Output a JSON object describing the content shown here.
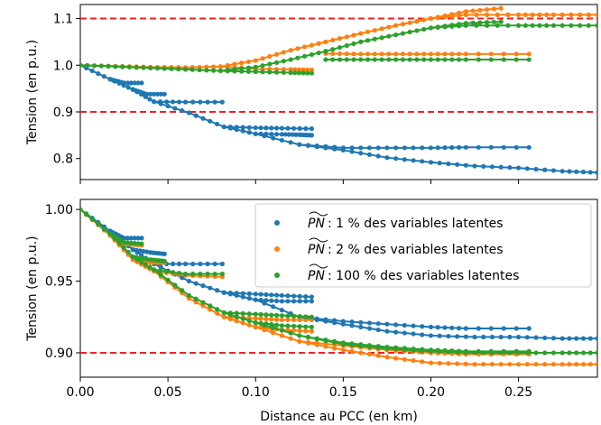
{
  "chart_data": [
    {
      "type": "scatter",
      "panel": "top",
      "xlabel": "",
      "ylabel": "Tension (en p.u.)",
      "xlim": [
        0.0,
        0.295
      ],
      "ylim": [
        0.755,
        1.13
      ],
      "xticks": [
        "0.00",
        "0.05",
        "0.10",
        "0.15",
        "0.20",
        "0.25"
      ],
      "xtick_values": [
        0.0,
        0.05,
        0.1,
        0.15,
        0.2,
        0.25
      ],
      "xticklabels_visible": false,
      "yticks": [
        "0.8",
        "0.9",
        "1.0",
        "1.1"
      ],
      "ytick_values": [
        0.8,
        0.9,
        1.0,
        1.1
      ],
      "hlines": [
        {
          "y": 1.1,
          "color": "#ee2222",
          "style": "dashed"
        },
        {
          "y": 0.9,
          "color": "#ee2222",
          "style": "dashed"
        }
      ],
      "series": [
        {
          "color": "#1f77b4",
          "branches": [
            [
              [
                0.0,
                1.0
              ],
              [
                0.017,
                0.97
              ],
              [
                0.025,
                0.962
              ],
              [
                0.035,
                0.962
              ]
            ],
            [
              [
                0.017,
                0.97
              ],
              [
                0.03,
                0.948
              ],
              [
                0.038,
                0.938
              ],
              [
                0.048,
                0.938
              ]
            ],
            [
              [
                0.03,
                0.948
              ],
              [
                0.042,
                0.922
              ],
              [
                0.06,
                0.921
              ],
              [
                0.081,
                0.921
              ]
            ],
            [
              [
                0.042,
                0.922
              ],
              [
                0.062,
                0.898
              ],
              [
                0.082,
                0.868
              ],
              [
                0.1,
                0.866
              ],
              [
                0.115,
                0.865
              ],
              [
                0.132,
                0.864
              ]
            ],
            [
              [
                0.082,
                0.868
              ],
              [
                0.1,
                0.853
              ],
              [
                0.115,
                0.852
              ],
              [
                0.125,
                0.851
              ],
              [
                0.132,
                0.85
              ]
            ],
            [
              [
                0.1,
                0.853
              ],
              [
                0.125,
                0.83
              ],
              [
                0.15,
                0.823
              ],
              [
                0.175,
                0.823
              ],
              [
                0.2,
                0.823
              ],
              [
                0.22,
                0.824
              ],
              [
                0.256,
                0.824
              ]
            ],
            [
              [
                0.125,
                0.83
              ],
              [
                0.15,
                0.818
              ],
              [
                0.175,
                0.802
              ],
              [
                0.2,
                0.792
              ],
              [
                0.225,
                0.784
              ],
              [
                0.25,
                0.78
              ],
              [
                0.275,
                0.773
              ],
              [
                0.295,
                0.77
              ]
            ]
          ]
        },
        {
          "color": "#ff7f0e",
          "branches": [
            [
              [
                0.0,
                1.0
              ],
              [
                0.02,
                0.998
              ],
              [
                0.04,
                0.996
              ],
              [
                0.06,
                0.995
              ],
              [
                0.08,
                0.997
              ]
            ],
            [
              [
                0.08,
                0.997
              ],
              [
                0.1,
                0.992
              ],
              [
                0.12,
                0.991
              ],
              [
                0.132,
                0.99
              ]
            ],
            [
              [
                0.08,
                0.997
              ],
              [
                0.1,
                1.01
              ],
              [
                0.12,
                1.032
              ],
              [
                0.14,
                1.05
              ],
              [
                0.16,
                1.068
              ],
              [
                0.18,
                1.085
              ],
              [
                0.2,
                1.1
              ],
              [
                0.22,
                1.115
              ],
              [
                0.24,
                1.122
              ]
            ],
            [
              [
                0.14,
                1.025
              ],
              [
                0.16,
                1.024
              ],
              [
                0.18,
                1.024
              ],
              [
                0.2,
                1.024
              ],
              [
                0.22,
                1.024
              ],
              [
                0.256,
                1.024
              ]
            ],
            [
              [
                0.2,
                1.1
              ],
              [
                0.22,
                1.108
              ],
              [
                0.25,
                1.108
              ],
              [
                0.27,
                1.108
              ],
              [
                0.295,
                1.108
              ]
            ]
          ]
        },
        {
          "color": "#2ca02c",
          "branches": [
            [
              [
                0.0,
                1.0
              ],
              [
                0.02,
                0.997
              ],
              [
                0.04,
                0.994
              ],
              [
                0.06,
                0.991
              ],
              [
                0.08,
                0.988
              ]
            ],
            [
              [
                0.08,
                0.988
              ],
              [
                0.1,
                0.986
              ],
              [
                0.12,
                0.984
              ],
              [
                0.132,
                0.983
              ]
            ],
            [
              [
                0.08,
                0.988
              ],
              [
                0.1,
                0.996
              ],
              [
                0.12,
                1.012
              ],
              [
                0.14,
                1.03
              ],
              [
                0.16,
                1.05
              ],
              [
                0.18,
                1.065
              ],
              [
                0.2,
                1.08
              ],
              [
                0.22,
                1.09
              ],
              [
                0.24,
                1.093
              ]
            ],
            [
              [
                0.14,
                1.012
              ],
              [
                0.16,
                1.012
              ],
              [
                0.18,
                1.012
              ],
              [
                0.2,
                1.012
              ],
              [
                0.22,
                1.012
              ],
              [
                0.256,
                1.012
              ]
            ],
            [
              [
                0.2,
                1.08
              ],
              [
                0.22,
                1.085
              ],
              [
                0.25,
                1.085
              ],
              [
                0.27,
                1.085
              ],
              [
                0.295,
                1.085
              ]
            ]
          ]
        }
      ]
    },
    {
      "type": "scatter",
      "panel": "bottom",
      "xlabel": "Distance au PCC (en km)",
      "ylabel": "Tension (en p.u.)",
      "xlim": [
        0.0,
        0.295
      ],
      "ylim": [
        0.883,
        1.007
      ],
      "xticks": [
        "0.00",
        "0.05",
        "0.10",
        "0.15",
        "0.20",
        "0.25"
      ],
      "xtick_values": [
        0.0,
        0.05,
        0.1,
        0.15,
        0.2,
        0.25
      ],
      "xticklabels_visible": true,
      "yticks": [
        "0.90",
        "0.95",
        "1.00"
      ],
      "ytick_values": [
        0.9,
        0.95,
        1.0
      ],
      "hlines": [
        {
          "y": 0.9,
          "color": "#ee2222",
          "style": "dashed"
        }
      ],
      "legend": {
        "placement": "top-right",
        "entries": [
          {
            "prefix": "PN",
            "text": " : 1 % des variables latentes",
            "color": "#1f77b4"
          },
          {
            "prefix": "PN",
            "text": " : 2 % des variables latentes",
            "color": "#ff7f0e"
          },
          {
            "prefix": "PN",
            "text": " : 100 % des variables latentes",
            "color": "#2ca02c"
          }
        ]
      },
      "series": [
        {
          "color": "#1f77b4",
          "branches": [
            [
              [
                0.0,
                1.0
              ],
              [
                0.017,
                0.985
              ],
              [
                0.025,
                0.98
              ],
              [
                0.035,
                0.98
              ]
            ],
            [
              [
                0.017,
                0.985
              ],
              [
                0.03,
                0.972
              ],
              [
                0.04,
                0.97
              ],
              [
                0.048,
                0.969
              ]
            ],
            [
              [
                0.03,
                0.972
              ],
              [
                0.042,
                0.962
              ],
              [
                0.06,
                0.962
              ],
              [
                0.081,
                0.962
              ]
            ],
            [
              [
                0.042,
                0.962
              ],
              [
                0.062,
                0.95
              ],
              [
                0.082,
                0.942
              ],
              [
                0.1,
                0.941
              ],
              [
                0.115,
                0.94
              ],
              [
                0.132,
                0.939
              ]
            ],
            [
              [
                0.082,
                0.942
              ],
              [
                0.1,
                0.937
              ],
              [
                0.115,
                0.936
              ],
              [
                0.132,
                0.936
              ]
            ],
            [
              [
                0.1,
                0.937
              ],
              [
                0.125,
                0.925
              ],
              [
                0.15,
                0.922
              ],
              [
                0.175,
                0.92
              ],
              [
                0.2,
                0.918
              ],
              [
                0.22,
                0.917
              ],
              [
                0.256,
                0.917
              ]
            ],
            [
              [
                0.125,
                0.925
              ],
              [
                0.15,
                0.92
              ],
              [
                0.175,
                0.915
              ],
              [
                0.2,
                0.912
              ],
              [
                0.225,
                0.911
              ],
              [
                0.25,
                0.911
              ],
              [
                0.275,
                0.91
              ],
              [
                0.295,
                0.91
              ]
            ]
          ]
        },
        {
          "color": "#ff7f0e",
          "branches": [
            [
              [
                0.0,
                1.0
              ],
              [
                0.017,
                0.982
              ],
              [
                0.025,
                0.976
              ],
              [
                0.035,
                0.975
              ]
            ],
            [
              [
                0.017,
                0.982
              ],
              [
                0.03,
                0.965
              ],
              [
                0.04,
                0.963
              ],
              [
                0.048,
                0.963
              ]
            ],
            [
              [
                0.03,
                0.965
              ],
              [
                0.042,
                0.957
              ],
              [
                0.06,
                0.954
              ],
              [
                0.081,
                0.953
              ]
            ],
            [
              [
                0.042,
                0.957
              ],
              [
                0.062,
                0.938
              ],
              [
                0.082,
                0.925
              ],
              [
                0.1,
                0.924
              ],
              [
                0.115,
                0.923
              ],
              [
                0.132,
                0.923
              ]
            ],
            [
              [
                0.082,
                0.925
              ],
              [
                0.1,
                0.918
              ],
              [
                0.115,
                0.916
              ],
              [
                0.132,
                0.915
              ]
            ],
            [
              [
                0.1,
                0.918
              ],
              [
                0.125,
                0.908
              ],
              [
                0.15,
                0.905
              ],
              [
                0.175,
                0.902
              ],
              [
                0.2,
                0.9
              ],
              [
                0.22,
                0.899
              ],
              [
                0.256,
                0.899
              ]
            ],
            [
              [
                0.125,
                0.908
              ],
              [
                0.15,
                0.902
              ],
              [
                0.175,
                0.897
              ],
              [
                0.2,
                0.893
              ],
              [
                0.225,
                0.892
              ],
              [
                0.25,
                0.892
              ],
              [
                0.275,
                0.892
              ],
              [
                0.295,
                0.892
              ]
            ]
          ]
        },
        {
          "color": "#2ca02c",
          "branches": [
            [
              [
                0.0,
                1.0
              ],
              [
                0.017,
                0.983
              ],
              [
                0.025,
                0.977
              ],
              [
                0.035,
                0.976
              ]
            ],
            [
              [
                0.017,
                0.983
              ],
              [
                0.03,
                0.967
              ],
              [
                0.04,
                0.965
              ],
              [
                0.048,
                0.964
              ]
            ],
            [
              [
                0.03,
                0.967
              ],
              [
                0.042,
                0.958
              ],
              [
                0.06,
                0.955
              ],
              [
                0.081,
                0.955
              ]
            ],
            [
              [
                0.042,
                0.958
              ],
              [
                0.062,
                0.94
              ],
              [
                0.082,
                0.928
              ],
              [
                0.1,
                0.927
              ],
              [
                0.115,
                0.926
              ],
              [
                0.132,
                0.925
              ]
            ],
            [
              [
                0.082,
                0.928
              ],
              [
                0.1,
                0.921
              ],
              [
                0.115,
                0.919
              ],
              [
                0.132,
                0.918
              ]
            ],
            [
              [
                0.1,
                0.921
              ],
              [
                0.125,
                0.912
              ],
              [
                0.15,
                0.907
              ],
              [
                0.175,
                0.904
              ],
              [
                0.2,
                0.902
              ],
              [
                0.22,
                0.901
              ],
              [
                0.256,
                0.901
              ]
            ],
            [
              [
                0.125,
                0.912
              ],
              [
                0.15,
                0.906
              ],
              [
                0.175,
                0.903
              ],
              [
                0.2,
                0.901
              ],
              [
                0.225,
                0.9
              ],
              [
                0.25,
                0.9
              ],
              [
                0.275,
                0.9
              ],
              [
                0.295,
                0.9
              ]
            ]
          ]
        }
      ]
    }
  ]
}
